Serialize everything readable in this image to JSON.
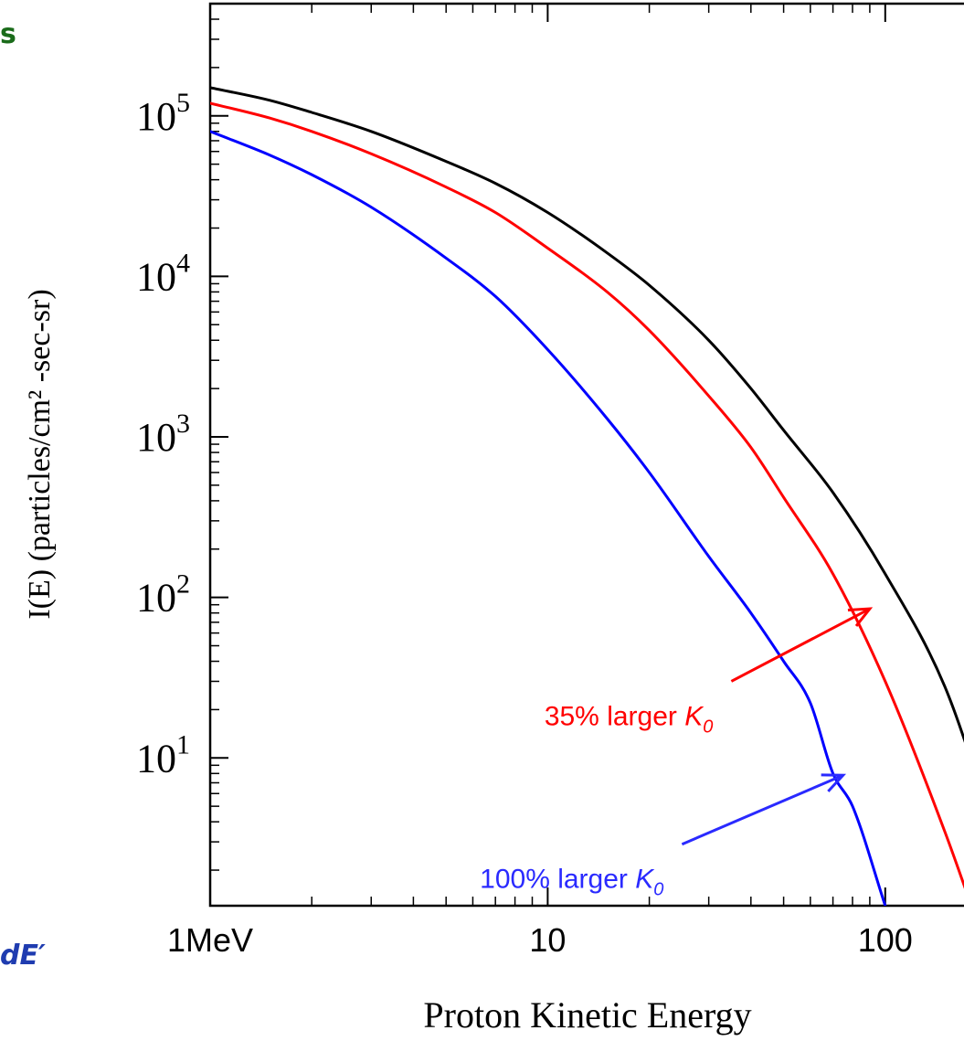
{
  "clipped_fragments": {
    "top_left": "s",
    "bottom_left": "dE′"
  },
  "chart_data": {
    "type": "line",
    "title": "",
    "xlabel": "Proton Kinetic Energy",
    "ylabel": "I(E) (particles/cm² -sec-sr)",
    "x_scale": "log",
    "y_scale": "log",
    "xlim": [
      1,
      200
    ],
    "ylim": [
      1.2,
      500000
    ],
    "x_ticks": [
      {
        "value": 1,
        "label": "1MeV"
      },
      {
        "value": 10,
        "label": "10"
      },
      {
        "value": 100,
        "label": "100"
      }
    ],
    "y_ticks": [
      {
        "value": 10,
        "base": "10",
        "exp": "1"
      },
      {
        "value": 100,
        "base": "10",
        "exp": "2"
      },
      {
        "value": 1000,
        "base": "10",
        "exp": "3"
      },
      {
        "value": 10000,
        "base": "10",
        "exp": "4"
      },
      {
        "value": 100000,
        "base": "10",
        "exp": "5"
      }
    ],
    "grid": false,
    "series": [
      {
        "key": "baseline",
        "color": "#000000",
        "x": [
          1,
          1.5,
          2,
          3,
          5,
          7,
          10,
          15,
          20,
          30,
          40,
          50,
          70,
          100,
          150,
          200
        ],
        "y": [
          150000,
          125000,
          105000,
          80000,
          52000,
          38000,
          25000,
          14000,
          8800,
          4000,
          2000,
          1100,
          450,
          140,
          28,
          5
        ]
      },
      {
        "key": "k0_35",
        "color": "#ff0000",
        "x": [
          1,
          1.5,
          2,
          3,
          5,
          7,
          10,
          15,
          20,
          30,
          40,
          50,
          70,
          100,
          150,
          180
        ],
        "y": [
          120000,
          97000,
          80000,
          58000,
          36000,
          25000,
          15000,
          8000,
          4600,
          1800,
          860,
          420,
          140,
          30,
          3.5,
          1.2
        ]
      },
      {
        "key": "k0_100",
        "color": "#0000ff",
        "x": [
          1,
          1.5,
          2,
          3,
          5,
          7,
          10,
          15,
          20,
          30,
          40,
          50,
          60,
          70,
          80,
          100
        ],
        "y": [
          80000,
          57000,
          43000,
          27000,
          13000,
          7500,
          3500,
          1300,
          600,
          180,
          80,
          40,
          22,
          8,
          5,
          1.2
        ]
      }
    ],
    "annotations": [
      {
        "key": "note_k0_35",
        "text_prefix": "35% larger ",
        "symbol": "K",
        "subscript": "0",
        "color": "#ff0000",
        "arrow_from": [
          35,
          30
        ],
        "arrow_to": [
          90,
          85
        ]
      },
      {
        "key": "note_k0_100",
        "text_prefix": "100% larger ",
        "symbol": "K",
        "subscript": "0",
        "color": "#2a2aff",
        "arrow_from": [
          25,
          2.9
        ],
        "arrow_to": [
          75,
          7.8
        ]
      }
    ]
  }
}
